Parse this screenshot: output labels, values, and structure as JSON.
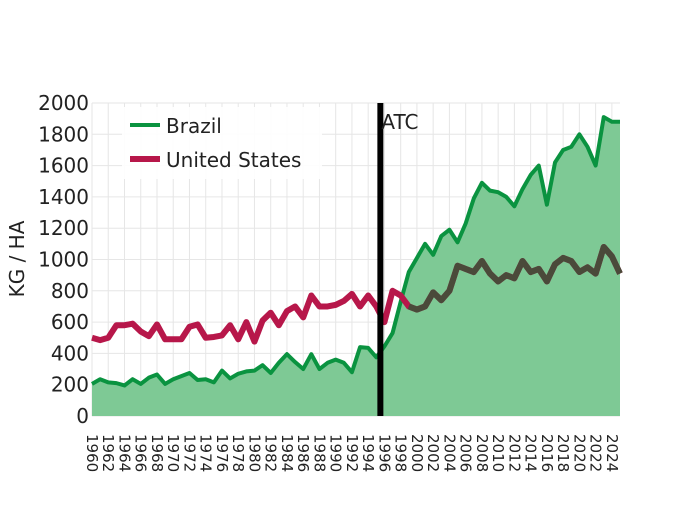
{
  "chart_data": {
    "type": "line",
    "ylabel": "KG / HA",
    "xlabel": "",
    "ylim": [
      0,
      2000
    ],
    "yticks": [
      0,
      200,
      400,
      600,
      800,
      1000,
      1200,
      1400,
      1600,
      1800,
      2000
    ],
    "xlim": [
      1960,
      2025
    ],
    "xtick_labels": [
      "1960",
      "1962",
      "1964",
      "1966",
      "1968",
      "1970",
      "1972",
      "1974",
      "1976",
      "1978",
      "1980",
      "1982",
      "1984",
      "1986",
      "1988",
      "1990",
      "1992",
      "1994",
      "1996",
      "1998",
      "2000",
      "2002",
      "2004",
      "2006",
      "2008",
      "2010",
      "2012",
      "2014",
      "2016",
      "2018",
      "2020",
      "2022",
      "2024"
    ],
    "grid": true,
    "legend_position": "top-left",
    "annotations": [
      {
        "text": "ATC",
        "x": 1995.5
      }
    ],
    "x": [
      1960,
      1961,
      1962,
      1963,
      1964,
      1965,
      1966,
      1967,
      1968,
      1969,
      1970,
      1971,
      1972,
      1973,
      1974,
      1975,
      1976,
      1977,
      1978,
      1979,
      1980,
      1981,
      1982,
      1983,
      1984,
      1985,
      1986,
      1987,
      1988,
      1989,
      1990,
      1991,
      1992,
      1993,
      1994,
      1995,
      1996,
      1997,
      1998,
      1999,
      2000,
      2001,
      2002,
      2003,
      2004,
      2005,
      2006,
      2007,
      2008,
      2009,
      2010,
      2011,
      2012,
      2013,
      2014,
      2015,
      2016,
      2017,
      2018,
      2019,
      2020,
      2021,
      2022,
      2023,
      2024,
      2025
    ],
    "series": [
      {
        "name": "Brazil",
        "color": "#0a9340",
        "fill": "#7ec995",
        "values": [
          205,
          235,
          215,
          210,
          195,
          235,
          205,
          245,
          265,
          205,
          235,
          255,
          275,
          230,
          235,
          215,
          290,
          240,
          270,
          285,
          290,
          325,
          275,
          340,
          395,
          345,
          300,
          395,
          300,
          340,
          360,
          340,
          280,
          440,
          435,
          375,
          445,
          530,
          730,
          920,
          1010,
          1100,
          1030,
          1150,
          1190,
          1110,
          1230,
          1390,
          1490,
          1440,
          1430,
          1400,
          1340,
          1450,
          1540,
          1600,
          1350,
          1620,
          1700,
          1720,
          1800,
          1720,
          1600,
          1910,
          1880,
          1880
        ]
      },
      {
        "name": "United States",
        "color": "#b7174a",
        "values": [
          500,
          485,
          500,
          580,
          580,
          590,
          540,
          510,
          585,
          490,
          490,
          490,
          570,
          585,
          500,
          505,
          515,
          580,
          490,
          600,
          475,
          610,
          660,
          580,
          670,
          700,
          630,
          770,
          700,
          700,
          710,
          735,
          780,
          700,
          770,
          700,
          600,
          800,
          770,
          700,
          680,
          700,
          790,
          740,
          800,
          960,
          940,
          920,
          990,
          910,
          860,
          900,
          880,
          990,
          920,
          940,
          860,
          970,
          1010,
          990,
          920,
          950,
          910,
          1080,
          1020,
          910
        ]
      }
    ]
  }
}
